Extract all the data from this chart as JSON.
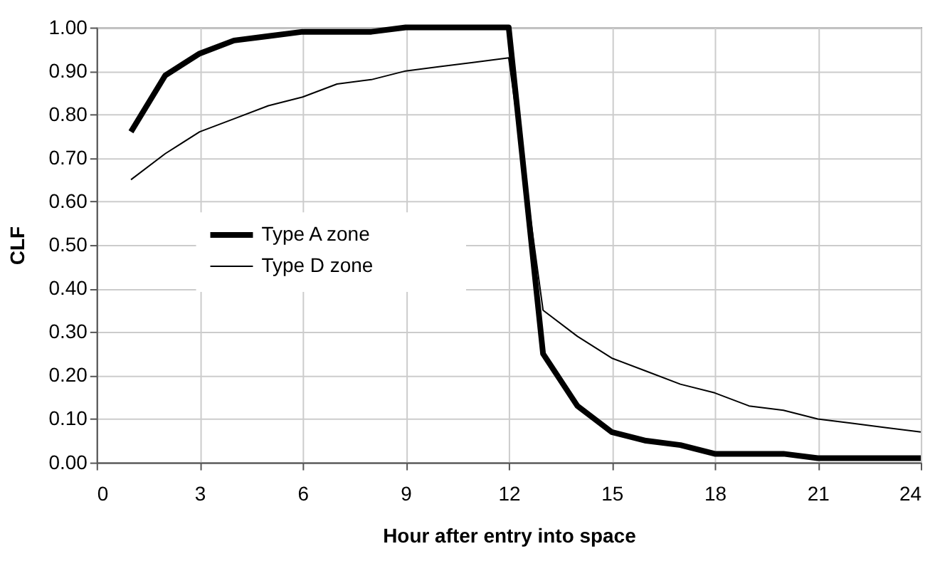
{
  "chart_data": {
    "type": "line",
    "xlabel": "Hour after entry into space",
    "ylabel": "CLF",
    "x": [
      1,
      2,
      3,
      4,
      5,
      6,
      7,
      8,
      9,
      10,
      11,
      12,
      13,
      14,
      15,
      16,
      17,
      18,
      19,
      20,
      21,
      22,
      23,
      24
    ],
    "series": [
      {
        "name": "Type A zone",
        "color": "#000000",
        "values": [
          0.76,
          0.89,
          0.94,
          0.97,
          0.98,
          0.99,
          0.99,
          0.99,
          1.0,
          1.0,
          1.0,
          1.0,
          0.25,
          0.13,
          0.07,
          0.05,
          0.04,
          0.02,
          0.02,
          0.02,
          0.01,
          0.01,
          0.01,
          0.01
        ]
      },
      {
        "name": "Type D zone",
        "color": "#000000",
        "values": [
          0.65,
          0.71,
          0.76,
          0.79,
          0.82,
          0.84,
          0.87,
          0.88,
          0.9,
          0.91,
          0.92,
          0.93,
          0.35,
          0.29,
          0.24,
          0.21,
          0.18,
          0.16,
          0.13,
          0.12,
          0.1,
          0.09,
          0.08,
          0.07
        ]
      }
    ],
    "xlim": [
      0,
      24
    ],
    "xticks": [
      0,
      3,
      6,
      9,
      12,
      15,
      18,
      21,
      24
    ],
    "ylim": [
      0,
      1
    ],
    "yticks": [
      {
        "value": 0,
        "label": "0.00"
      },
      {
        "value": 0.1,
        "label": "0.10"
      },
      {
        "value": 0.2,
        "label": "0.20"
      },
      {
        "value": 0.3,
        "label": "0.30"
      },
      {
        "value": 0.4,
        "label": "0.40"
      },
      {
        "value": 0.5,
        "label": "0.50"
      },
      {
        "value": 0.6,
        "label": "0.60"
      },
      {
        "value": 0.7,
        "label": "0.70"
      },
      {
        "value": 0.8,
        "label": "0.80"
      },
      {
        "value": 0.9,
        "label": "0.90"
      },
      {
        "value": 1.0,
        "label": "1.00"
      }
    ],
    "grid": true,
    "legend": "left",
    "marker": "none",
    "line_style": "solid"
  }
}
